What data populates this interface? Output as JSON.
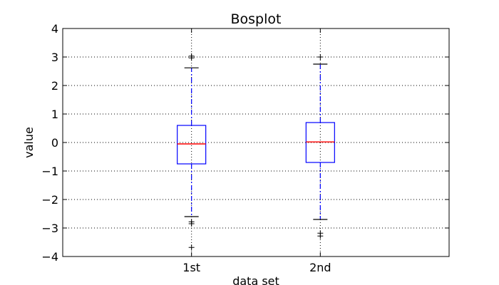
{
  "chart_data": {
    "type": "box",
    "title": "Bosplot",
    "xlabel": "data set",
    "ylabel": "value",
    "ylim": [
      -4,
      4
    ],
    "yticks": [
      -4,
      -3,
      -2,
      -1,
      0,
      1,
      2,
      3,
      4
    ],
    "ytick_labels": [
      "−4",
      "−3",
      "−2",
      "−1",
      "0",
      "1",
      "2",
      "3",
      "4"
    ],
    "grid": true,
    "categories": [
      "1st",
      "2nd"
    ],
    "boxes": [
      {
        "label": "1st",
        "q1": -0.75,
        "median": -0.05,
        "q3": 0.6,
        "whisker_low": -2.6,
        "whisker_high": 2.62,
        "outliers": [
          2.97,
          3.03,
          -2.78,
          -2.85,
          -3.68
        ]
      },
      {
        "label": "2nd",
        "q1": -0.7,
        "median": 0.02,
        "q3": 0.7,
        "whisker_low": -2.7,
        "whisker_high": 2.75,
        "outliers": [
          3.0,
          -3.18,
          -3.28
        ]
      }
    ],
    "colors": {
      "box": "#0000ff",
      "median": "#ff0000",
      "whisker": "#0000ff",
      "cap": "#000000",
      "outlier": "#000000",
      "grid": "#000000"
    }
  }
}
